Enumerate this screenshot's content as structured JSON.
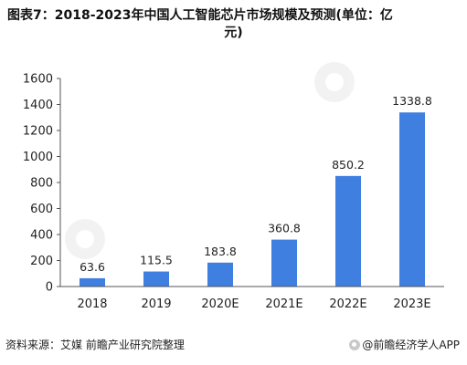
{
  "title": "图表7：2018-2023年中国人工智能芯片市场规模及预测(单位：亿元)",
  "title_line1": "图表7：2018-2023年中国人工智能芯片市场规模及预测(单位：亿",
  "title_line2": "元)",
  "source": "资料来源：艾媒 前瞻产业研究院整理",
  "brand": "@前瞻经济学人APP",
  "colors": {
    "bar": "#3f7fe0",
    "axis": "#555555",
    "text": "#222222"
  },
  "chart_data": {
    "type": "bar",
    "categories": [
      "2018",
      "2019",
      "2020E",
      "2021E",
      "2022E",
      "2023E"
    ],
    "values": [
      63.6,
      115.5,
      183.8,
      360.8,
      850.2,
      1338.8
    ],
    "value_labels": [
      "63.6",
      "115.5",
      "183.8",
      "360.8",
      "850.2",
      "1338.8"
    ],
    "ylim": [
      0,
      1600
    ],
    "yticks": [
      0,
      200,
      400,
      600,
      800,
      1000,
      1200,
      1400,
      1600
    ],
    "grid": false
  }
}
